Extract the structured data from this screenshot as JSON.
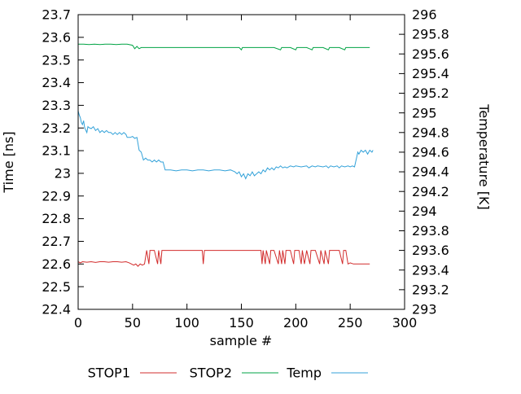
{
  "chart_data": {
    "type": "line",
    "grid": false,
    "legend_position": "bottom",
    "background": "#ffffff",
    "border_color": "#000000",
    "x_axis": {
      "label": "sample #",
      "min": 0,
      "max": 300,
      "tick_step": 50
    },
    "left_axis": {
      "label": "Time [ns]",
      "min": 22.4,
      "max": 23.7,
      "tick_step": 0.1
    },
    "right_axis": {
      "label": "Temperature [K]",
      "min": 293,
      "max": 296,
      "tick_step": 0.2
    },
    "series": [
      {
        "name": "STOP1",
        "color": "#d22c2c",
        "axis": "left",
        "points": [
          [
            0,
            22.61
          ],
          [
            2,
            22.605
          ],
          [
            4,
            22.61
          ],
          [
            8,
            22.608
          ],
          [
            12,
            22.61
          ],
          [
            16,
            22.607
          ],
          [
            20,
            22.61
          ],
          [
            24,
            22.61
          ],
          [
            28,
            22.608
          ],
          [
            32,
            22.61
          ],
          [
            36,
            22.61
          ],
          [
            40,
            22.608
          ],
          [
            44,
            22.61
          ],
          [
            47,
            22.605
          ],
          [
            49,
            22.6
          ],
          [
            51,
            22.595
          ],
          [
            53,
            22.6
          ],
          [
            55,
            22.59
          ],
          [
            57,
            22.6
          ],
          [
            59,
            22.595
          ],
          [
            61,
            22.6
          ],
          [
            63,
            22.66
          ],
          [
            65,
            22.6
          ],
          [
            66,
            22.66
          ],
          [
            70,
            22.66
          ],
          [
            73,
            22.6
          ],
          [
            74,
            22.66
          ],
          [
            76,
            22.6
          ],
          [
            77,
            22.66
          ],
          [
            80,
            22.66
          ],
          [
            85,
            22.66
          ],
          [
            90,
            22.66
          ],
          [
            95,
            22.66
          ],
          [
            100,
            22.66
          ],
          [
            105,
            22.66
          ],
          [
            110,
            22.66
          ],
          [
            114,
            22.66
          ],
          [
            115,
            22.6
          ],
          [
            116,
            22.66
          ],
          [
            120,
            22.66
          ],
          [
            125,
            22.66
          ],
          [
            130,
            22.66
          ],
          [
            135,
            22.66
          ],
          [
            140,
            22.66
          ],
          [
            145,
            22.66
          ],
          [
            150,
            22.66
          ],
          [
            155,
            22.66
          ],
          [
            160,
            22.66
          ],
          [
            165,
            22.66
          ],
          [
            168,
            22.66
          ],
          [
            169,
            22.6
          ],
          [
            170,
            22.66
          ],
          [
            172,
            22.6
          ],
          [
            173,
            22.66
          ],
          [
            176,
            22.6
          ],
          [
            177,
            22.66
          ],
          [
            180,
            22.66
          ],
          [
            184,
            22.6
          ],
          [
            185,
            22.66
          ],
          [
            187,
            22.6
          ],
          [
            188,
            22.66
          ],
          [
            190,
            22.6
          ],
          [
            191,
            22.66
          ],
          [
            195,
            22.66
          ],
          [
            198,
            22.6
          ],
          [
            199,
            22.66
          ],
          [
            203,
            22.66
          ],
          [
            205,
            22.6
          ],
          [
            206,
            22.66
          ],
          [
            208,
            22.6
          ],
          [
            210,
            22.66
          ],
          [
            213,
            22.6
          ],
          [
            214,
            22.66
          ],
          [
            218,
            22.66
          ],
          [
            222,
            22.6
          ],
          [
            223,
            22.66
          ],
          [
            226,
            22.6
          ],
          [
            227,
            22.66
          ],
          [
            230,
            22.6
          ],
          [
            231,
            22.66
          ],
          [
            235,
            22.66
          ],
          [
            240,
            22.66
          ],
          [
            243,
            22.6
          ],
          [
            244,
            22.66
          ],
          [
            246,
            22.66
          ],
          [
            248,
            22.6
          ],
          [
            250,
            22.605
          ],
          [
            253,
            22.6
          ],
          [
            256,
            22.6
          ],
          [
            259,
            22.6
          ],
          [
            262,
            22.6
          ],
          [
            265,
            22.6
          ],
          [
            268,
            22.6
          ]
        ]
      },
      {
        "name": "STOP2",
        "color": "#00a344",
        "axis": "left",
        "points": [
          [
            0,
            23.57
          ],
          [
            5,
            23.57
          ],
          [
            10,
            23.568
          ],
          [
            15,
            23.57
          ],
          [
            20,
            23.568
          ],
          [
            25,
            23.57
          ],
          [
            30,
            23.57
          ],
          [
            35,
            23.568
          ],
          [
            40,
            23.57
          ],
          [
            45,
            23.57
          ],
          [
            50,
            23.565
          ],
          [
            52,
            23.55
          ],
          [
            54,
            23.56
          ],
          [
            56,
            23.55
          ],
          [
            58,
            23.555
          ],
          [
            62,
            23.555
          ],
          [
            70,
            23.555
          ],
          [
            80,
            23.555
          ],
          [
            90,
            23.555
          ],
          [
            100,
            23.555
          ],
          [
            110,
            23.555
          ],
          [
            120,
            23.555
          ],
          [
            130,
            23.555
          ],
          [
            140,
            23.555
          ],
          [
            148,
            23.555
          ],
          [
            150,
            23.545
          ],
          [
            151,
            23.555
          ],
          [
            160,
            23.555
          ],
          [
            170,
            23.555
          ],
          [
            180,
            23.555
          ],
          [
            186,
            23.545
          ],
          [
            187,
            23.555
          ],
          [
            195,
            23.555
          ],
          [
            200,
            23.545
          ],
          [
            201,
            23.555
          ],
          [
            210,
            23.555
          ],
          [
            215,
            23.545
          ],
          [
            216,
            23.555
          ],
          [
            225,
            23.555
          ],
          [
            230,
            23.545
          ],
          [
            231,
            23.555
          ],
          [
            240,
            23.555
          ],
          [
            245,
            23.545
          ],
          [
            246,
            23.555
          ],
          [
            255,
            23.555
          ],
          [
            262,
            23.555
          ],
          [
            268,
            23.555
          ]
        ]
      },
      {
        "name": "Temp",
        "color": "#33a2d9",
        "axis": "right",
        "points": [
          [
            0,
            295.02
          ],
          [
            1,
            294.98
          ],
          [
            2,
            294.95
          ],
          [
            3,
            294.9
          ],
          [
            4,
            294.88
          ],
          [
            5,
            294.92
          ],
          [
            6,
            294.85
          ],
          [
            8,
            294.8
          ],
          [
            9,
            294.86
          ],
          [
            10,
            294.85
          ],
          [
            12,
            294.84
          ],
          [
            14,
            294.86
          ],
          [
            16,
            294.82
          ],
          [
            18,
            294.84
          ],
          [
            20,
            294.8
          ],
          [
            22,
            294.82
          ],
          [
            24,
            294.8
          ],
          [
            26,
            294.82
          ],
          [
            28,
            294.8
          ],
          [
            30,
            294.8
          ],
          [
            32,
            294.78
          ],
          [
            34,
            294.8
          ],
          [
            36,
            294.78
          ],
          [
            38,
            294.8
          ],
          [
            40,
            294.78
          ],
          [
            42,
            294.8
          ],
          [
            44,
            294.78
          ],
          [
            45,
            294.75
          ],
          [
            48,
            294.75
          ],
          [
            50,
            294.76
          ],
          [
            52,
            294.74
          ],
          [
            54,
            294.75
          ],
          [
            56,
            294.62
          ],
          [
            58,
            294.6
          ],
          [
            60,
            294.52
          ],
          [
            62,
            294.54
          ],
          [
            64,
            294.52
          ],
          [
            66,
            294.52
          ],
          [
            68,
            294.5
          ],
          [
            70,
            294.52
          ],
          [
            72,
            294.5
          ],
          [
            74,
            294.52
          ],
          [
            76,
            294.5
          ],
          [
            78,
            294.5
          ],
          [
            80,
            294.42
          ],
          [
            85,
            294.42
          ],
          [
            90,
            294.41
          ],
          [
            95,
            294.42
          ],
          [
            100,
            294.42
          ],
          [
            105,
            294.41
          ],
          [
            110,
            294.42
          ],
          [
            115,
            294.42
          ],
          [
            120,
            294.41
          ],
          [
            125,
            294.42
          ],
          [
            130,
            294.42
          ],
          [
            135,
            294.41
          ],
          [
            140,
            294.42
          ],
          [
            144,
            294.4
          ],
          [
            146,
            294.38
          ],
          [
            148,
            294.4
          ],
          [
            150,
            294.35
          ],
          [
            152,
            294.38
          ],
          [
            154,
            294.33
          ],
          [
            156,
            294.38
          ],
          [
            158,
            294.36
          ],
          [
            160,
            294.4
          ],
          [
            162,
            294.36
          ],
          [
            164,
            294.38
          ],
          [
            166,
            294.4
          ],
          [
            168,
            294.38
          ],
          [
            170,
            294.42
          ],
          [
            172,
            294.4
          ],
          [
            174,
            294.44
          ],
          [
            176,
            294.42
          ],
          [
            178,
            294.44
          ],
          [
            180,
            294.42
          ],
          [
            182,
            294.45
          ],
          [
            184,
            294.44
          ],
          [
            186,
            294.46
          ],
          [
            188,
            294.44
          ],
          [
            190,
            294.45
          ],
          [
            192,
            294.44
          ],
          [
            195,
            294.46
          ],
          [
            198,
            294.45
          ],
          [
            200,
            294.46
          ],
          [
            205,
            294.45
          ],
          [
            210,
            294.46
          ],
          [
            212,
            294.44
          ],
          [
            215,
            294.46
          ],
          [
            218,
            294.45
          ],
          [
            220,
            294.46
          ],
          [
            225,
            294.45
          ],
          [
            228,
            294.46
          ],
          [
            230,
            294.44
          ],
          [
            232,
            294.46
          ],
          [
            235,
            294.45
          ],
          [
            238,
            294.46
          ],
          [
            240,
            294.44
          ],
          [
            242,
            294.46
          ],
          [
            245,
            294.45
          ],
          [
            248,
            294.46
          ],
          [
            250,
            294.45
          ],
          [
            252,
            294.46
          ],
          [
            254,
            294.45
          ],
          [
            256,
            294.55
          ],
          [
            257,
            294.6
          ],
          [
            258,
            294.58
          ],
          [
            260,
            294.62
          ],
          [
            262,
            294.6
          ],
          [
            264,
            294.62
          ],
          [
            266,
            294.58
          ],
          [
            268,
            294.62
          ],
          [
            270,
            294.6
          ],
          [
            271,
            294.62
          ]
        ]
      }
    ]
  }
}
